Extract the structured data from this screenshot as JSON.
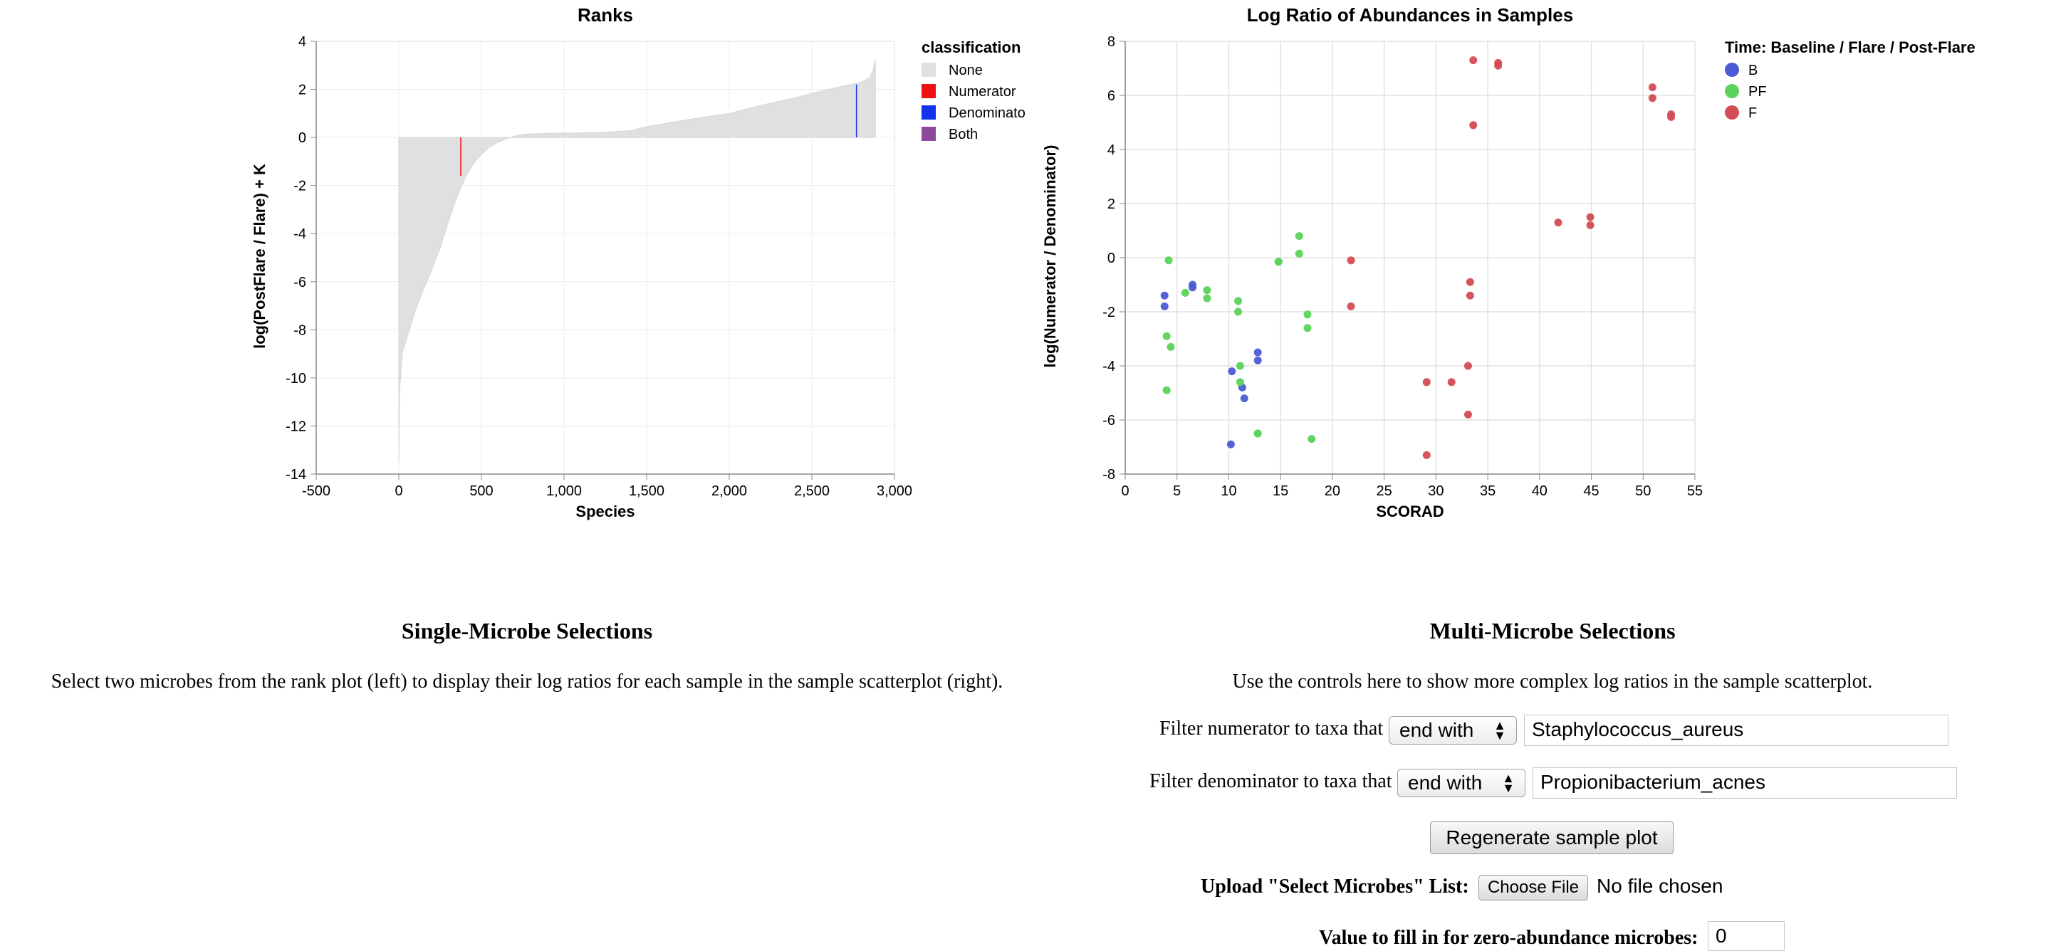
{
  "rank_plot": {
    "title": "Ranks",
    "xlabel": "Species",
    "ylabel": "log(PostFlare / Flare) + K",
    "x_ticks": [
      "-500",
      "0",
      "500",
      "1,000",
      "1,500",
      "2,000",
      "2,500",
      "3,000"
    ],
    "y_ticks": [
      "4",
      "2",
      "0",
      "-2",
      "-4",
      "-6",
      "-8",
      "-10",
      "-12",
      "-14"
    ],
    "legend_title": "classification",
    "legend": [
      {
        "label": "None",
        "color": "#e0e0e0"
      },
      {
        "label": "Numerator",
        "color": "#ee1111"
      },
      {
        "label": "Denominator",
        "color": "#1133ee"
      },
      {
        "label": "Both",
        "color": "#8e4a9a"
      }
    ]
  },
  "scatter_plot": {
    "title": "Log Ratio of Abundances in Samples",
    "xlabel": "SCORAD",
    "ylabel": "log(Numerator / Denominator)",
    "x_ticks": [
      "0",
      "5",
      "10",
      "15",
      "20",
      "25",
      "30",
      "35",
      "40",
      "45",
      "50",
      "55"
    ],
    "y_ticks": [
      "8",
      "6",
      "4",
      "2",
      "0",
      "-2",
      "-4",
      "-6",
      "-8"
    ],
    "legend_title": "Time: Baseline / Flare / Post-Flare",
    "legend": [
      {
        "label": "B",
        "color": "#4c5bd4"
      },
      {
        "label": "PF",
        "color": "#5ad35a"
      },
      {
        "label": "F",
        "color": "#d44c54"
      }
    ]
  },
  "chart_data": [
    {
      "type": "area",
      "title": "Ranks",
      "xlabel": "Species",
      "ylabel": "log(PostFlare / Flare) + K",
      "xlim": [
        -500,
        3000
      ],
      "ylim": [
        -14,
        4
      ],
      "grid": true,
      "legend_placement": "right",
      "series": [
        {
          "name": "None",
          "x": [
            0,
            5,
            20,
            50,
            100,
            150,
            200,
            250,
            300,
            350,
            400,
            450,
            500,
            550,
            600,
            650,
            700,
            750,
            800,
            1000,
            1200,
            1400,
            1500,
            1800,
            2000,
            2200,
            2400,
            2600,
            2800,
            2850,
            2870,
            2885
          ],
          "values": [
            -13.5,
            -10.5,
            -9.0,
            -8.3,
            -7.2,
            -6.3,
            -5.5,
            -4.6,
            -3.5,
            -2.5,
            -1.7,
            -1.1,
            -0.7,
            -0.4,
            -0.2,
            -0.05,
            0.05,
            0.12,
            0.15,
            0.18,
            0.2,
            0.28,
            0.45,
            0.8,
            1.0,
            1.35,
            1.65,
            2.0,
            2.3,
            2.5,
            2.8,
            3.2
          ]
        }
      ],
      "highlights": [
        {
          "classification": "Numerator",
          "x": 375,
          "value": -1.6
        },
        {
          "classification": "Denominator",
          "x": 2770,
          "value": 2.2
        }
      ]
    },
    {
      "type": "scatter",
      "title": "Log Ratio of Abundances in Samples",
      "xlabel": "SCORAD",
      "ylabel": "log(Numerator / Denominator)",
      "xlim": [
        0,
        55
      ],
      "ylim": [
        -8,
        8
      ],
      "grid": true,
      "legend_placement": "right",
      "series": [
        {
          "name": "B",
          "points": [
            [
              3.8,
              -1.4
            ],
            [
              3.8,
              -1.8
            ],
            [
              6.5,
              -1.0
            ],
            [
              6.5,
              -1.1
            ],
            [
              10.3,
              -4.2
            ],
            [
              10.2,
              -6.9
            ],
            [
              11.3,
              -4.8
            ],
            [
              11.5,
              -5.2
            ],
            [
              12.8,
              -3.5
            ],
            [
              12.8,
              -3.8
            ]
          ]
        },
        {
          "name": "PF",
          "points": [
            [
              4.2,
              -0.1
            ],
            [
              4.4,
              -3.3
            ],
            [
              4.0,
              -2.9
            ],
            [
              4.0,
              -4.9
            ],
            [
              5.8,
              -1.3
            ],
            [
              7.9,
              -1.2
            ],
            [
              7.9,
              -1.5
            ],
            [
              10.9,
              -1.6
            ],
            [
              10.9,
              -2.0
            ],
            [
              11.1,
              -4.0
            ],
            [
              11.1,
              -4.6
            ],
            [
              12.8,
              -6.5
            ],
            [
              12.8,
              -6.5
            ],
            [
              14.8,
              -0.15
            ],
            [
              14.8,
              -0.15
            ],
            [
              16.8,
              0.8
            ],
            [
              16.8,
              0.15
            ],
            [
              17.6,
              -2.1
            ],
            [
              17.6,
              -2.6
            ],
            [
              18.0,
              -6.7
            ]
          ]
        },
        {
          "name": "F",
          "points": [
            [
              21.8,
              -0.1
            ],
            [
              21.8,
              -1.8
            ],
            [
              29.1,
              -4.6
            ],
            [
              29.1,
              -7.3
            ],
            [
              31.5,
              -4.6
            ],
            [
              33.1,
              -4.0
            ],
            [
              33.1,
              -5.8
            ],
            [
              33.3,
              -0.9
            ],
            [
              33.3,
              -1.4
            ],
            [
              33.6,
              7.3
            ],
            [
              33.6,
              4.9
            ],
            [
              36.0,
              7.2
            ],
            [
              36.0,
              7.1
            ],
            [
              41.8,
              1.3
            ],
            [
              44.9,
              1.5
            ],
            [
              44.9,
              1.2
            ],
            [
              50.9,
              6.3
            ],
            [
              50.9,
              5.9
            ],
            [
              52.7,
              5.3
            ],
            [
              52.7,
              5.2
            ]
          ]
        }
      ]
    }
  ],
  "single": {
    "title": "Single-Microbe Selections",
    "description": "Select two microbes from the rank plot (left) to display their log ratios for each sample in the sample scatterplot (right)."
  },
  "multi": {
    "title": "Multi-Microbe Selections",
    "description": "Use the controls here to show more complex log ratios in the sample scatterplot.",
    "numerator_label": "Filter numerator to taxa that",
    "numerator_select": "end with",
    "numerator_value": "Staphylococcus_aureus",
    "denominator_label": "Filter denominator to taxa that",
    "denominator_select": "end with",
    "denominator_value": "Propionibacterium_acnes",
    "regenerate_label": "Regenerate sample plot",
    "upload_label": "Upload \"Select Microbes\" List:",
    "choose_file_label": "Choose File",
    "no_file_text": "No file chosen",
    "zero_fill_label": "Value to fill in for zero-abundance microbes:",
    "zero_fill_value": "0"
  }
}
